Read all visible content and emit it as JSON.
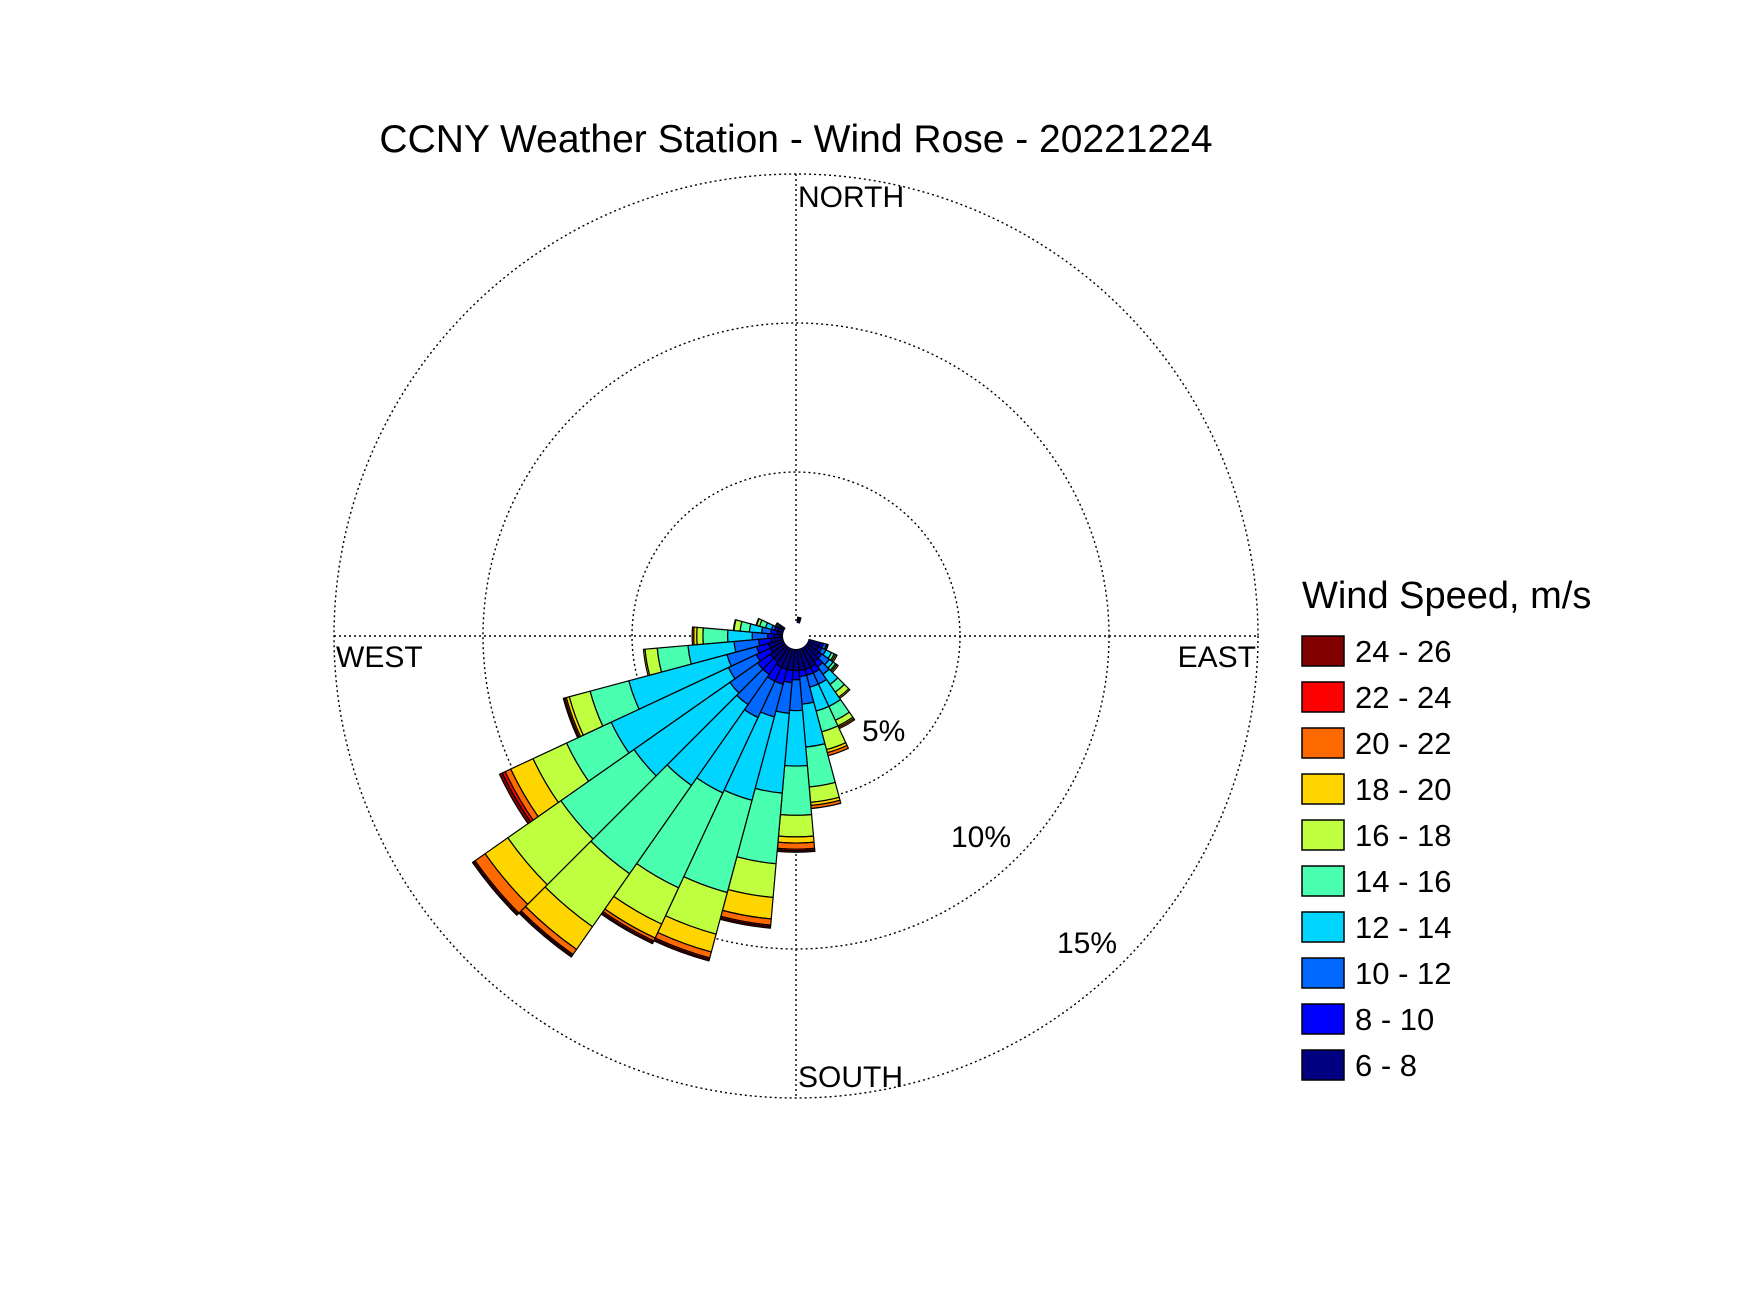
{
  "chart_data": {
    "type": "wind-rose",
    "title": "CCNY Weather Station - Wind Rose - 20221224",
    "directions": {
      "north": "NORTH",
      "south": "SOUTH",
      "east": "EAST",
      "west": "WEST"
    },
    "radial_ticks": [
      {
        "value": 5,
        "label": "5%"
      },
      {
        "value": 10,
        "label": "10%"
      },
      {
        "value": 15,
        "label": "15%"
      }
    ],
    "radial_max": 15,
    "grid": true,
    "legend": {
      "title": "Wind Speed, m/s",
      "placement": "right",
      "bins": [
        {
          "label": "24 - 26",
          "color": "#800000"
        },
        {
          "label": "22 - 24",
          "color": "#ff0000"
        },
        {
          "label": "20 - 22",
          "color": "#ff6a00"
        },
        {
          "label": "18 - 20",
          "color": "#ffd500"
        },
        {
          "label": "16 - 18",
          "color": "#bfff40"
        },
        {
          "label": "14 - 16",
          "color": "#4affb0"
        },
        {
          "label": "12 - 14",
          "color": "#00d5ff"
        },
        {
          "label": "10 - 12",
          "color": "#0068ff"
        },
        {
          "label": "8 - 10",
          "color": "#0000ff"
        },
        {
          "label": "6 - 8",
          "color": "#000080"
        }
      ]
    },
    "sector_width_deg": 10,
    "speed_bins": [
      "6 - 8",
      "8 - 10",
      "10 - 12",
      "12 - 14",
      "14 - 16",
      "16 - 18",
      "18 - 20",
      "20 - 22",
      "22 - 24",
      "24 - 26"
    ],
    "sectors": [
      {
        "direction_deg": 10,
        "cumulative_percent": [
          0.1,
          0.14,
          0.16,
          0.17,
          0.18,
          0.19,
          0.19,
          0.19,
          0.19,
          0.19
        ]
      },
      {
        "direction_deg": 110,
        "cumulative_percent": [
          0.4,
          0.5,
          0.6,
          0.62,
          0.64,
          0.66,
          0.66,
          0.66,
          0.66,
          0.66
        ]
      },
      {
        "direction_deg": 120,
        "cumulative_percent": [
          0.4,
          0.5,
          0.65,
          0.85,
          0.95,
          1.0,
          1.05,
          1.05,
          1.05,
          1.05
        ]
      },
      {
        "direction_deg": 130,
        "cumulative_percent": [
          0.5,
          0.6,
          0.9,
          1.05,
          1.15,
          1.2,
          1.25,
          1.25,
          1.25,
          1.25
        ]
      },
      {
        "direction_deg": 140,
        "cumulative_percent": [
          0.6,
          0.8,
          1.1,
          1.5,
          1.8,
          2.0,
          2.05,
          2.05,
          2.05,
          2.05
        ]
      },
      {
        "direction_deg": 150,
        "cumulative_percent": [
          0.7,
          0.9,
          1.3,
          2.1,
          2.6,
          2.8,
          2.85,
          2.9,
          2.9,
          2.9
        ]
      },
      {
        "direction_deg": 160,
        "cumulative_percent": [
          0.7,
          0.9,
          1.3,
          2.1,
          2.8,
          3.4,
          3.5,
          3.6,
          3.6,
          3.6
        ]
      },
      {
        "direction_deg": 170,
        "cumulative_percent": [
          0.7,
          0.9,
          1.8,
          3.2,
          4.5,
          5.0,
          5.1,
          5.2,
          5.2,
          5.2
        ]
      },
      {
        "direction_deg": 180,
        "cumulative_percent": [
          0.7,
          1.0,
          2.0,
          3.8,
          5.4,
          6.1,
          6.3,
          6.5,
          6.55,
          6.6
        ]
      },
      {
        "direction_deg": 190,
        "cumulative_percent": [
          0.7,
          1.1,
          2.1,
          4.7,
          7.0,
          8.1,
          8.8,
          9.0,
          9.05,
          9.1
        ]
      },
      {
        "direction_deg": 200,
        "cumulative_percent": [
          0.7,
          1.2,
          2.3,
          5.1,
          8.2,
          9.6,
          10.2,
          10.4,
          10.45,
          10.5
        ]
      },
      {
        "direction_deg": 210,
        "cumulative_percent": [
          0.7,
          1.2,
          2.5,
          5.2,
          8.6,
          9.9,
          10.4,
          10.5,
          10.55,
          10.6
        ]
      },
      {
        "direction_deg": 220,
        "cumulative_percent": [
          0.6,
          1.1,
          2.3,
          5.5,
          9.0,
          11.1,
          12.0,
          12.2,
          12.25,
          12.3
        ]
      },
      {
        "direction_deg": 230,
        "cumulative_percent": [
          0.6,
          1.1,
          2.2,
          6.0,
          8.9,
          11.0,
          11.9,
          12.3,
          12.35,
          12.4
        ]
      },
      {
        "direction_deg": 240,
        "cumulative_percent": [
          0.5,
          1.0,
          2.0,
          6.2,
          7.8,
          9.0,
          9.8,
          10.0,
          10.1,
          10.2
        ]
      },
      {
        "direction_deg": 250,
        "cumulative_percent": [
          0.5,
          0.9,
          1.9,
          5.2,
          6.5,
          7.2,
          7.3,
          7.35,
          7.35,
          7.4
        ]
      },
      {
        "direction_deg": 260,
        "cumulative_percent": [
          0.4,
          0.8,
          1.6,
          3.1,
          4.1,
          4.5,
          4.55,
          4.55,
          4.55,
          4.55
        ]
      },
      {
        "direction_deg": 270,
        "cumulative_percent": [
          0.3,
          0.5,
          1.0,
          1.8,
          2.6,
          2.8,
          2.9,
          2.95,
          2.95,
          2.95
        ]
      },
      {
        "direction_deg": 280,
        "cumulative_percent": [
          0.2,
          0.4,
          0.7,
          1.1,
          1.4,
          1.6,
          1.6,
          1.62,
          1.62,
          1.62
        ]
      },
      {
        "direction_deg": 290,
        "cumulative_percent": [
          0.2,
          0.3,
          0.4,
          0.6,
          0.8,
          0.9,
          0.92,
          0.92,
          0.92,
          0.92
        ]
      },
      {
        "direction_deg": 300,
        "cumulative_percent": [
          0.1,
          0.15,
          0.2,
          0.25,
          0.3,
          0.32,
          0.32,
          0.32,
          0.32,
          0.32
        ]
      }
    ]
  }
}
